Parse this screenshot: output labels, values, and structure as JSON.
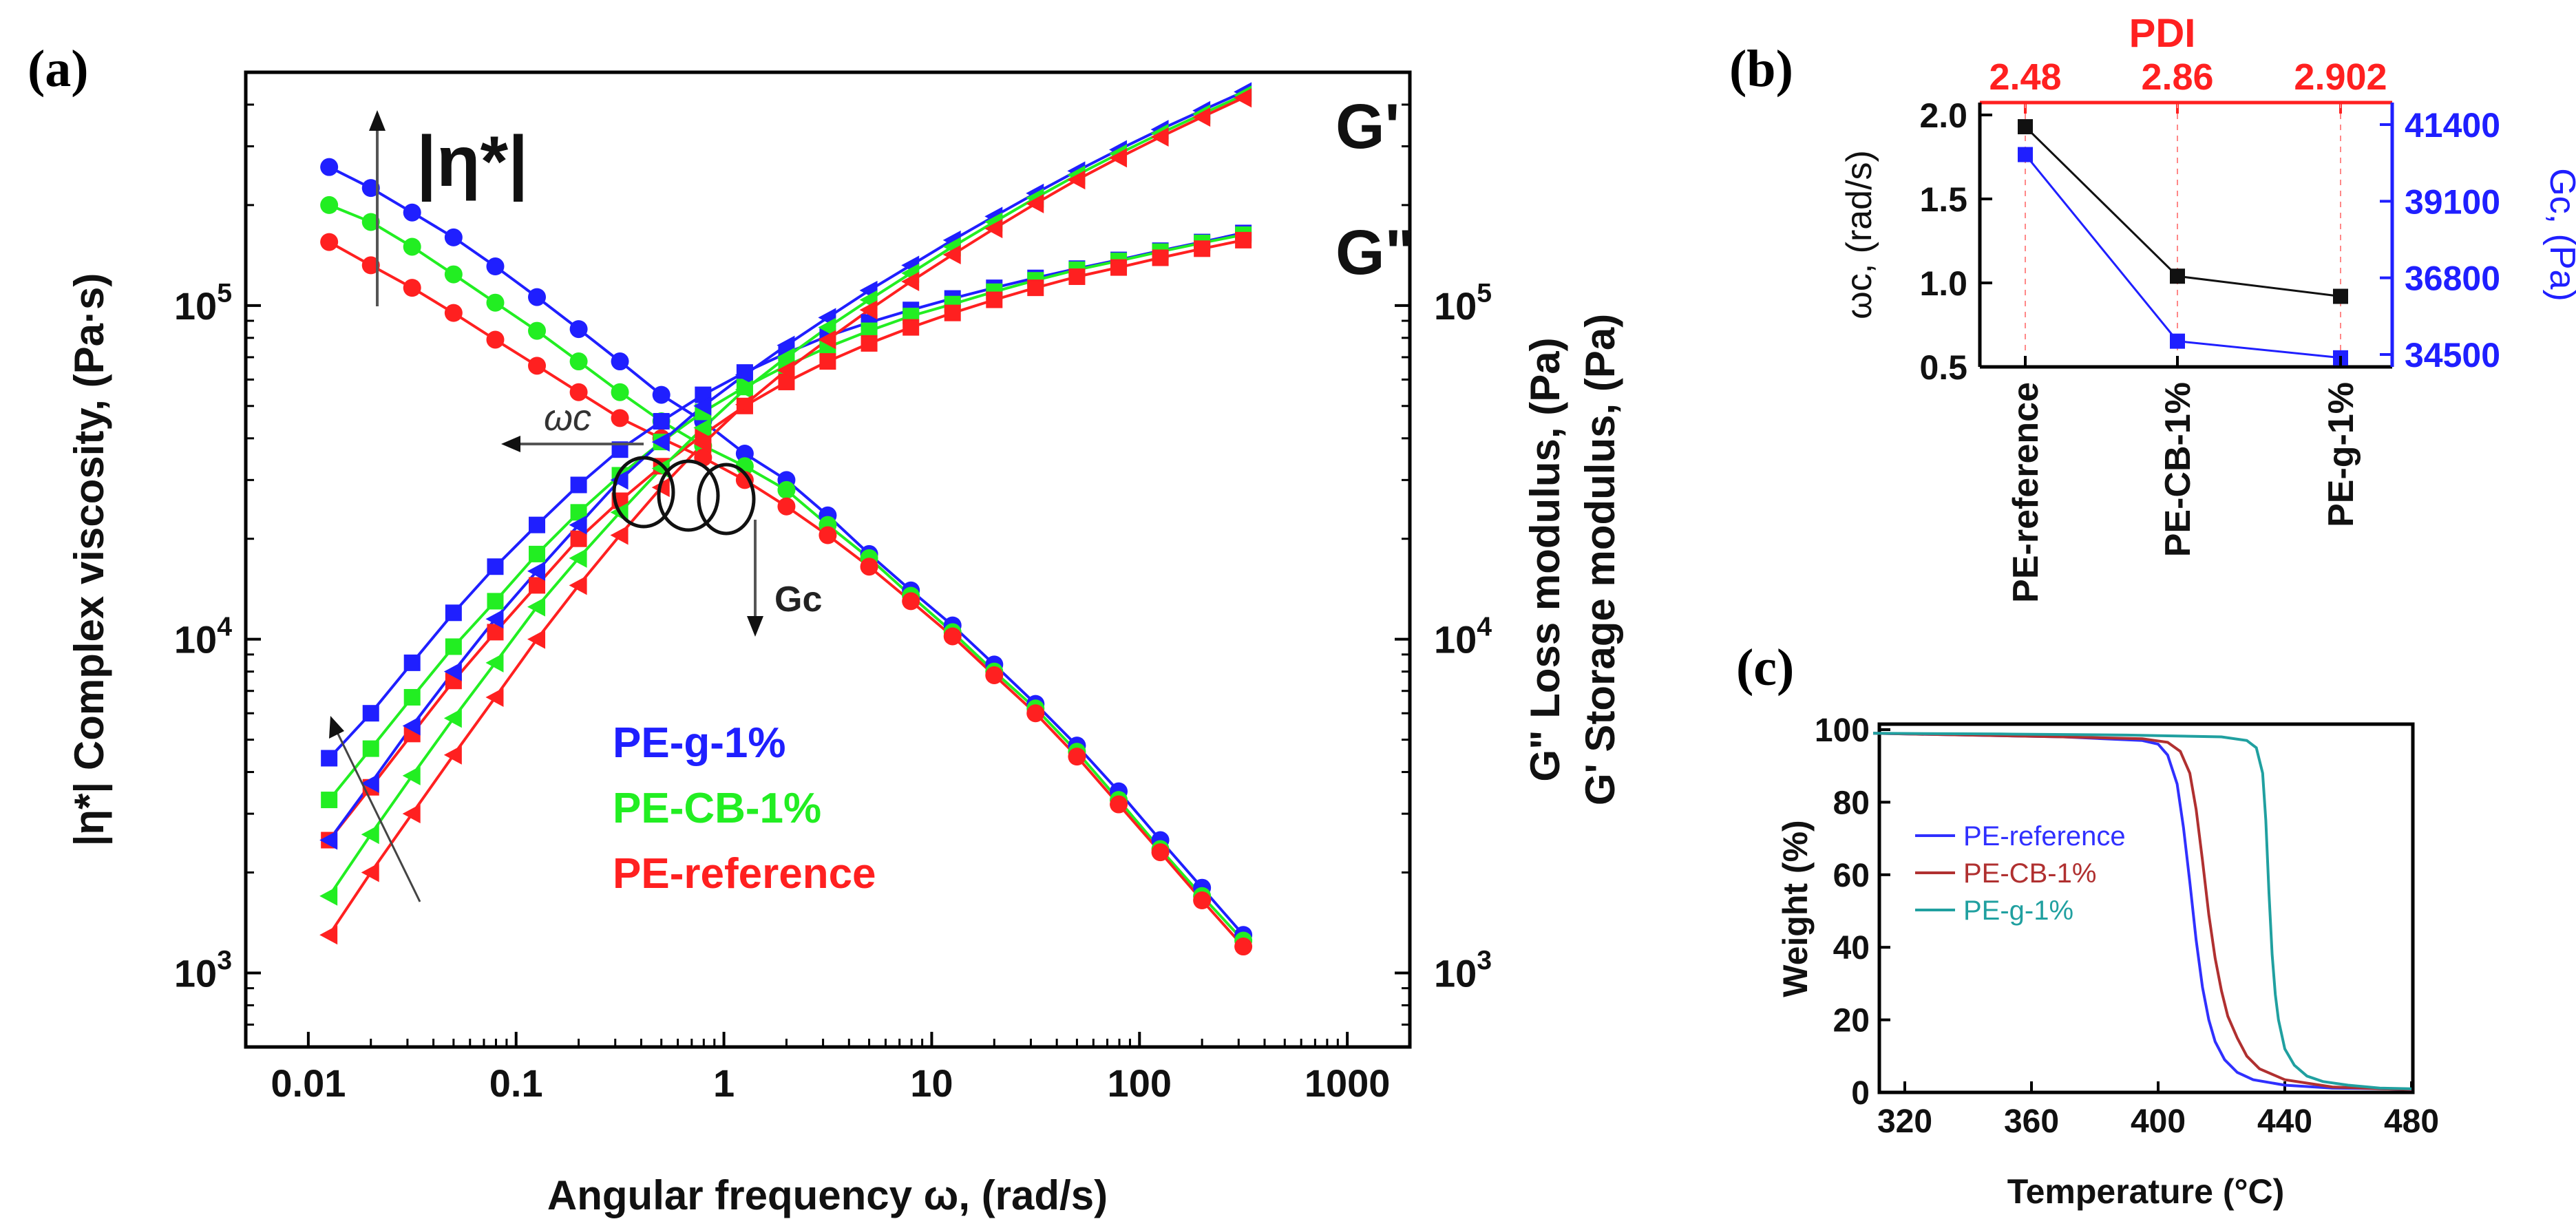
{
  "chart_data": [
    {
      "panel": "(a)",
      "type": "scatter",
      "x_scale": "log",
      "xlabel": "Angular frequency ω, (rad/s)",
      "ylabel_left": "|η*| Complex viscosity, (Pa·s)",
      "ylabel_right_1": "G\" Loss modulus, (Pa)",
      "ylabel_right_2": "G' Storage modulus, (Pa)",
      "xlim": [
        0.005,
        2000
      ],
      "ylim": [
        600,
        500000
      ],
      "x_ticks": [
        "0.01",
        "0.1",
        "1",
        "10",
        "100",
        "1000"
      ],
      "y_ticks_left": [
        "10",
        "10",
        "10"
      ],
      "y_ticks_left_exp": [
        "3",
        "4",
        "5"
      ],
      "y_ticks_right": [
        "10",
        "10",
        "10"
      ],
      "y_ticks_right_exp": [
        "3",
        "4",
        "5"
      ],
      "x": [
        0.0126,
        0.02,
        0.0316,
        0.05,
        0.0794,
        0.126,
        0.2,
        0.316,
        0.5,
        0.794,
        1.26,
        2,
        3.16,
        5,
        7.94,
        12.6,
        20,
        31.6,
        50,
        79.4,
        126,
        200,
        316
      ],
      "series": [
        {
          "name": "PE-g-1%",
          "color": "#1f1fff",
          "quantity": "eta",
          "marker": "circle",
          "values": [
            260000,
            225000,
            190000,
            160000,
            131000,
            106000,
            85000,
            68000,
            54000,
            45000,
            36000,
            30000,
            23500,
            18000,
            14000,
            11000,
            8400,
            6400,
            4800,
            3500,
            2500,
            1800,
            1300
          ]
        },
        {
          "name": "PE-CB-1%",
          "color": "#22ee22",
          "quantity": "eta",
          "marker": "circle",
          "values": [
            200000,
            178000,
            150000,
            124000,
            102000,
            84000,
            68000,
            55000,
            45000,
            38000,
            33000,
            28000,
            22000,
            17500,
            13500,
            10500,
            8000,
            6200,
            4600,
            3300,
            2350,
            1700,
            1250
          ]
        },
        {
          "name": "PE-reference",
          "color": "#ff2020",
          "quantity": "eta",
          "marker": "circle",
          "values": [
            155000,
            132000,
            113000,
            95000,
            79000,
            66000,
            55000,
            46000,
            40000,
            35000,
            30000,
            25000,
            20500,
            16500,
            13000,
            10200,
            7800,
            6000,
            4450,
            3200,
            2300,
            1650,
            1200
          ]
        },
        {
          "name": "PE-g-1%",
          "color": "#1f1fff",
          "quantity": "G''",
          "marker": "square",
          "values": [
            4400,
            6000,
            8500,
            12000,
            16500,
            22000,
            29000,
            37000,
            45000,
            54000,
            63000,
            72000,
            81000,
            89000,
            97000,
            105000,
            113000,
            121000,
            129000,
            137000,
            146000,
            155000,
            165000
          ]
        },
        {
          "name": "PE-CB-1%",
          "color": "#22ee22",
          "quantity": "G''",
          "marker": "square",
          "values": [
            3300,
            4700,
            6700,
            9500,
            13000,
            18000,
            24000,
            31000,
            39000,
            48000,
            57000,
            66000,
            75000,
            84000,
            93000,
            101000,
            110000,
            119000,
            128000,
            136000,
            145000,
            154000,
            163000
          ]
        },
        {
          "name": "PE-reference",
          "color": "#ff2020",
          "quantity": "G''",
          "marker": "square",
          "values": [
            2500,
            3600,
            5200,
            7500,
            10500,
            14500,
            20000,
            26000,
            33000,
            41000,
            50000,
            59000,
            68000,
            77000,
            86000,
            95000,
            104000,
            113000,
            122000,
            130000,
            139000,
            148000,
            157000
          ]
        },
        {
          "name": "PE-g-1%",
          "color": "#1f1fff",
          "quantity": "G'",
          "marker": "triangle",
          "values": [
            2500,
            3700,
            5500,
            8000,
            11500,
            16000,
            22000,
            30000,
            39000,
            50000,
            62000,
            76000,
            92000,
            111000,
            132000,
            157000,
            185000,
            217000,
            253000,
            293000,
            337000,
            384000,
            437000
          ]
        },
        {
          "name": "PE-CB-1%",
          "color": "#22ee22",
          "quantity": "G'",
          "marker": "triangle",
          "values": [
            1700,
            2600,
            3900,
            5800,
            8500,
            12500,
            17500,
            24000,
            32500,
            43000,
            56000,
            70000,
            86000,
            104000,
            125000,
            150000,
            178000,
            210000,
            246000,
            285000,
            328000,
            375000,
            427000
          ]
        },
        {
          "name": "PE-reference",
          "color": "#ff2020",
          "quantity": "G'",
          "marker": "triangle",
          "values": [
            1300,
            2000,
            3000,
            4500,
            6700,
            10000,
            14500,
            20500,
            28500,
            38500,
            50500,
            64000,
            79000,
            97000,
            118000,
            142000,
            170000,
            202000,
            238000,
            277000,
            320000,
            367000,
            419000
          ]
        }
      ],
      "annotations": {
        "eta_label": "|η*|",
        "g_prime_label": "G'",
        "g_double_prime_label": "G\"",
        "omega_c_label": "ωc",
        "g_c_label": "Gc"
      },
      "legend": [
        "PE-g-1%",
        "PE-CB-1%",
        "PE-reference"
      ],
      "legend_colors": [
        "#1f1fff",
        "#22ee22",
        "#ff2020"
      ],
      "legend_position": "lower-left"
    },
    {
      "panel": "(b)",
      "type": "line",
      "categories": [
        "PE-reference",
        "PE-CB-1%",
        "PE-g-1%"
      ],
      "top_axis_title": "PDI",
      "top_axis_labels": [
        "2.48",
        "2.86",
        "2.902"
      ],
      "ylabel_left": "ωc, (rad/s)",
      "ylabel_right": "Gc, (Pa)",
      "ylim_left": [
        0.5,
        2.0
      ],
      "ylim_right": [
        33400,
        42500
      ],
      "y_ticks_left": [
        "0.5",
        "1.0",
        "1.5",
        "2.0"
      ],
      "y_ticks_right": [
        "34500",
        "36800",
        "39100",
        "41400"
      ],
      "series": [
        {
          "name": "ωc",
          "color": "#111111",
          "axis": "left",
          "values": [
            1.93,
            1.04,
            0.92
          ]
        },
        {
          "name": "Gc",
          "color": "#1f1fff",
          "axis": "right",
          "values": [
            40500,
            34900,
            34400
          ]
        }
      ]
    },
    {
      "panel": "(c)",
      "type": "line",
      "xlabel": "Temperature (°C)",
      "ylabel": "Weight (%)",
      "xlim": [
        310,
        480
      ],
      "ylim": [
        0,
        102
      ],
      "x_ticks": [
        "320",
        "360",
        "400",
        "440",
        "480"
      ],
      "y_ticks": [
        "0",
        "20",
        "40",
        "60",
        "80",
        "100"
      ],
      "series": [
        {
          "name": "PE-reference",
          "color": "#3030ff",
          "x": [
            310,
            340,
            370,
            395,
            400,
            403,
            406,
            408,
            410,
            412,
            414,
            416,
            418,
            421,
            425,
            430,
            440,
            455,
            470,
            480
          ],
          "y": [
            99,
            98.5,
            98,
            97,
            96,
            93,
            85,
            73,
            58,
            42,
            29,
            20,
            14,
            9,
            5.5,
            3.5,
            2,
            1.2,
            1,
            0.8
          ]
        },
        {
          "name": "PE-CB-1%",
          "color": "#b03030",
          "x": [
            310,
            340,
            370,
            395,
            403,
            407,
            410,
            412,
            414,
            416,
            418,
            420,
            422,
            425,
            428,
            432,
            440,
            455,
            470,
            480
          ],
          "y": [
            99,
            98.5,
            98,
            97.5,
            96.5,
            94,
            88,
            78,
            64,
            49,
            37,
            28,
            21,
            15,
            10,
            6.5,
            3.5,
            1.5,
            1,
            0.8
          ]
        },
        {
          "name": "PE-g-1%",
          "color": "#20a0a0",
          "x": [
            310,
            350,
            390,
            420,
            428,
            431,
            433,
            434,
            435,
            436,
            437,
            438,
            440,
            443,
            447,
            452,
            460,
            470,
            480
          ],
          "y": [
            99,
            98.8,
            98.5,
            98,
            97,
            95,
            88,
            75,
            55,
            38,
            27,
            20,
            12,
            7.5,
            4.5,
            3,
            2,
            1.2,
            1
          ]
        }
      ],
      "legend": [
        "PE-reference",
        "PE-CB-1%",
        "PE-g-1%"
      ],
      "legend_position": "middle-left"
    }
  ]
}
